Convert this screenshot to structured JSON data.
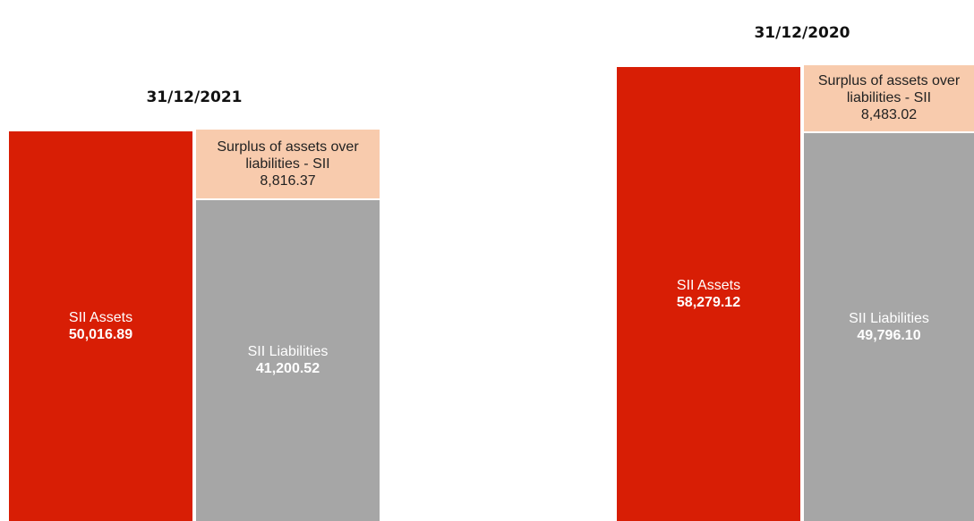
{
  "chart_data": [
    {
      "type": "balance",
      "title": "31/12/2021",
      "series": [
        {
          "name": "SII Assets",
          "color": "#d81e05",
          "values": [
            50016.89
          ],
          "value_labels": [
            "50,016.89"
          ]
        },
        {
          "name": "SII Liabilities",
          "color": "#a6a6a6",
          "values": [
            41200.52
          ],
          "value_labels": [
            "41,200.52"
          ]
        },
        {
          "name": "Surplus of assets over liabilities - SII",
          "color": "#f8cbad",
          "values": [
            8816.37
          ],
          "value_labels": [
            "8,816.37"
          ]
        }
      ]
    },
    {
      "type": "balance",
      "title": "31/12/2020",
      "series": [
        {
          "name": "SII Assets",
          "color": "#d81e05",
          "values": [
            58279.12
          ],
          "value_labels": [
            "58,279.12"
          ]
        },
        {
          "name": "SII Liabilities",
          "color": "#a6a6a6",
          "values": [
            49796.1
          ],
          "value_labels": [
            "49,796.10"
          ]
        },
        {
          "name": "Surplus of assets over liabilities - SII",
          "color": "#f8cbad",
          "values": [
            8483.02
          ],
          "value_labels": [
            "8,483.02"
          ]
        }
      ]
    }
  ]
}
